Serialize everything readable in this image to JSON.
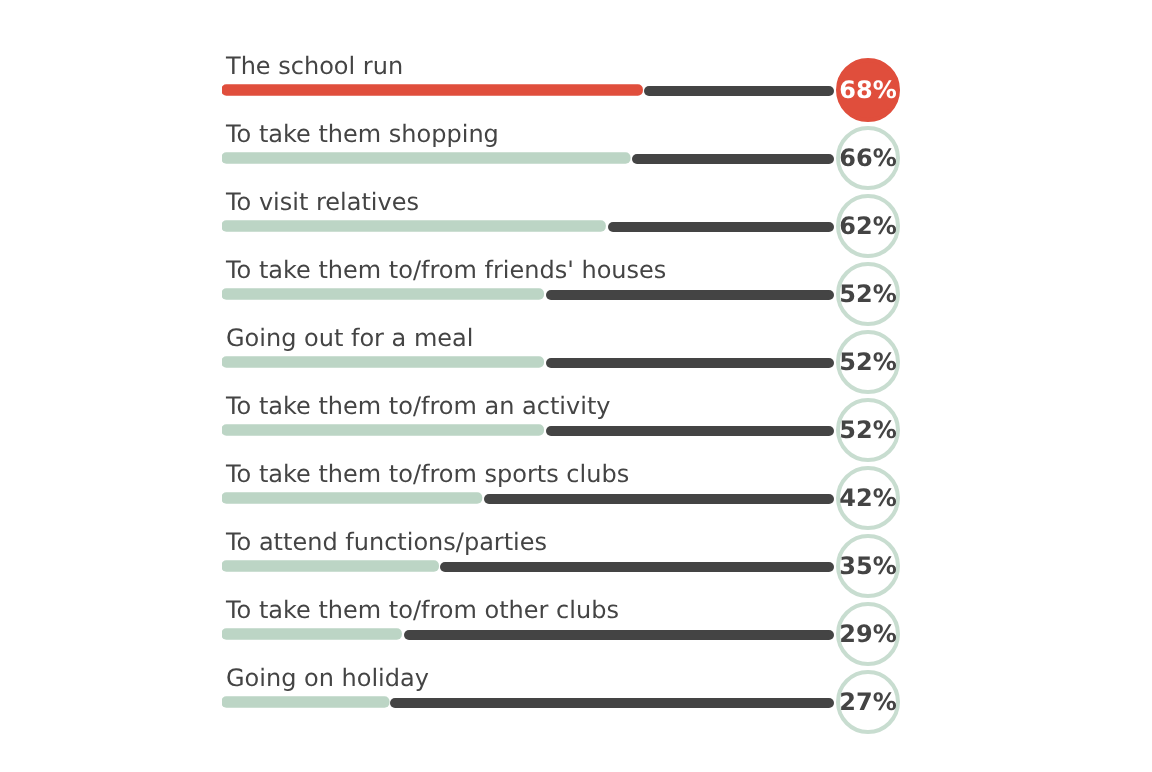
{
  "chart_data": {
    "type": "bar",
    "orientation": "horizontal",
    "categories": [
      "The school run",
      "To take them shopping",
      "To visit relatives",
      "To take them to/from friends' houses",
      "Going out for a meal",
      "To take them to/from an activity",
      "To take them to/from sports clubs",
      "To attend functions/parties",
      "To take them to/from other clubs",
      "Going on holiday"
    ],
    "values": [
      68,
      66,
      62,
      52,
      52,
      52,
      42,
      35,
      29,
      27
    ],
    "value_labels": [
      "68%",
      "66%",
      "62%",
      "52%",
      "52%",
      "52%",
      "42%",
      "35%",
      "29%",
      "27%"
    ],
    "colors": [
      "#e04e3c",
      "#bcd5c5",
      "#bcd5c5",
      "#bcd5c5",
      "#bcd5c5",
      "#bcd5c5",
      "#bcd5c5",
      "#bcd5c5",
      "#bcd5c5",
      "#bcd5c5"
    ],
    "xlim": [
      0,
      100
    ],
    "tick_labels": false,
    "legend": false
  }
}
